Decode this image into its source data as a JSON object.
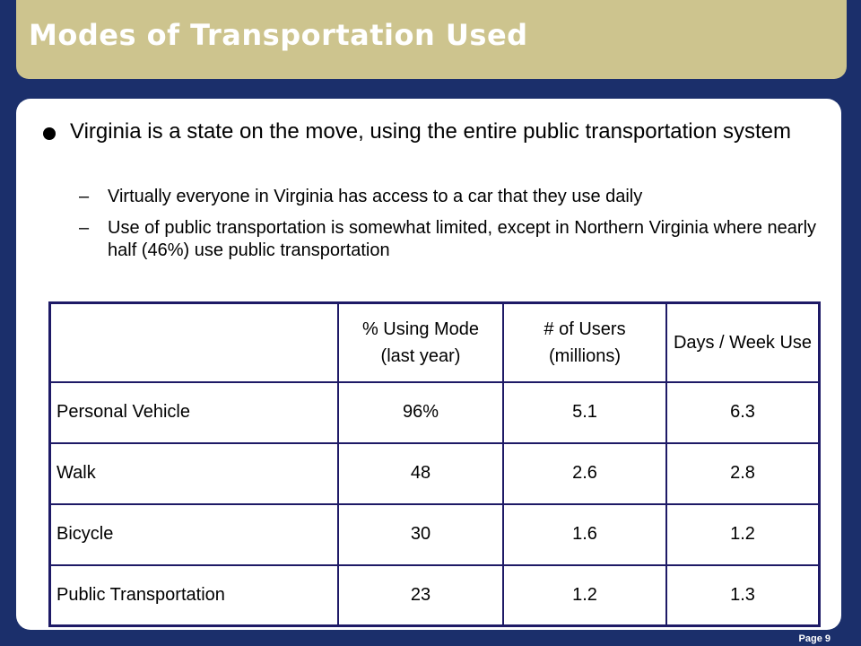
{
  "slide": {
    "title": "Modes of Transportation Used",
    "page_label": "Page 9"
  },
  "content": {
    "bullet": "Virginia is a state on the move, using the entire public transportation system",
    "sub_bullets": [
      "Virtually everyone in Virginia has access to a car that they use daily",
      "Use of public transportation is somewhat limited, except in Northern Virginia where nearly half (46%) use public transportation"
    ],
    "dash": "–"
  },
  "table": {
    "headers": [
      "",
      "% Using Mode (last year)",
      "# of Users (millions)",
      "Days / Week Use"
    ],
    "rows": [
      [
        "Personal Vehicle",
        "96%",
        "5.1",
        "6.3"
      ],
      [
        "Walk",
        "48",
        "2.6",
        "2.8"
      ],
      [
        "Bicycle",
        "30",
        "1.6",
        "1.2"
      ],
      [
        "Public Transportation",
        "23",
        "1.2",
        "1.3"
      ]
    ]
  },
  "colors": {
    "background": "#1b2f6b",
    "title_bar": "#cdc48e",
    "table_border": "#1e1a66"
  }
}
